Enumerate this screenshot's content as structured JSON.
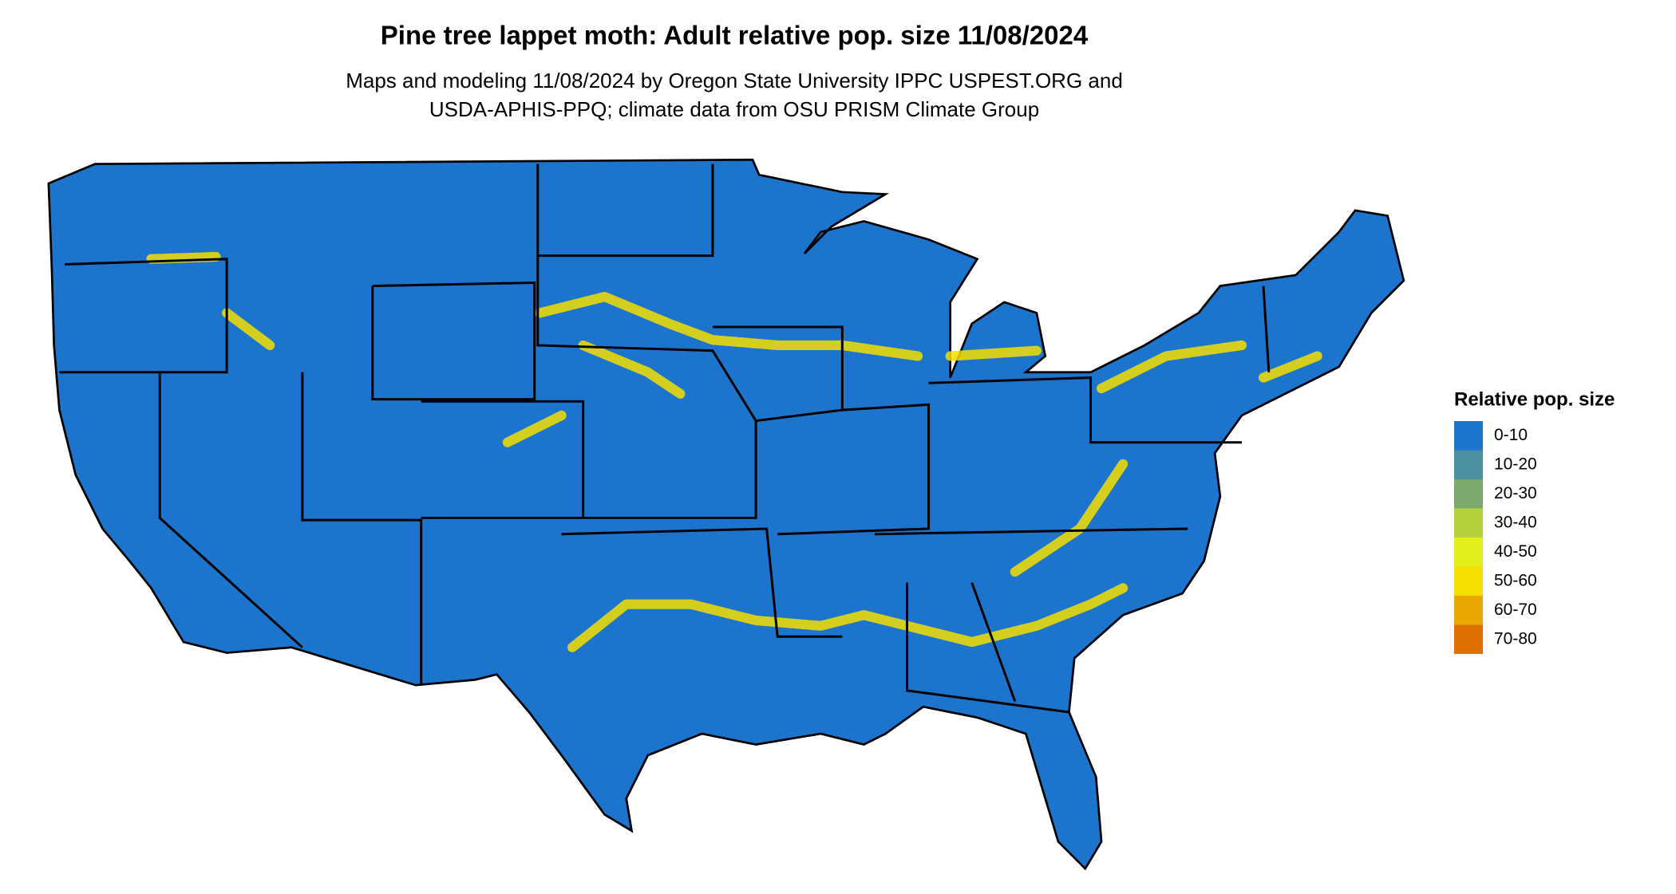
{
  "title": "Pine tree lappet moth: Adult relative pop. size 11/08/2024",
  "subtitle": [
    "Maps and modeling 11/08/2024 by Oregon State University IPPC USPEST.ORG and",
    "USDA-APHIS-PPQ; climate data from OSU PRISM Climate Group"
  ],
  "legend": {
    "title": "Relative pop. size",
    "items": [
      {
        "label": "0-10",
        "color": "#1c74cc"
      },
      {
        "label": "10-20",
        "color": "#4b8fa0"
      },
      {
        "label": "20-30",
        "color": "#7aab6d"
      },
      {
        "label": "30-40",
        "color": "#b3d13b"
      },
      {
        "label": "40-50",
        "color": "#e3ee1a"
      },
      {
        "label": "50-60",
        "color": "#f5de00"
      },
      {
        "label": "60-70",
        "color": "#eba800"
      },
      {
        "label": "70-80",
        "color": "#e07000"
      }
    ]
  }
}
